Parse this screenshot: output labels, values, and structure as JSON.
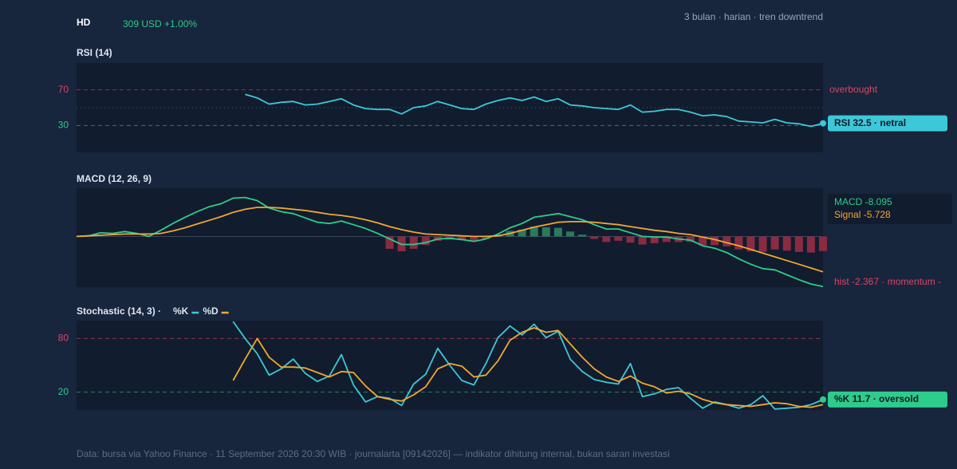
{
  "header": {
    "ticker": "HD",
    "price": "309 USD +1.00%",
    "meta": "3 bulan · harian · tren downtrend"
  },
  "footer": "Data: bursa via Yahoo Finance · 11 September 2026 20:30 WIB · journalarta [09142026] — indikator dihitung internal, bukan saran investasi",
  "chart_data": [
    {
      "type": "line",
      "title": "RSI (14)",
      "ylim": [
        0,
        100
      ],
      "yticks": [
        30,
        70
      ],
      "tick_colors": [
        "#2ecc8a",
        "#e0435f"
      ],
      "midline": 50,
      "annotation": "overbought",
      "badge": "RSI 32.5 · netral",
      "badge_color": "#3cc8d8",
      "series": [
        {
          "name": "RSI",
          "color": "#3cc8d8",
          "values": [
            null,
            null,
            null,
            null,
            null,
            null,
            null,
            null,
            null,
            null,
            null,
            null,
            null,
            null,
            65,
            61,
            54,
            56,
            57,
            53,
            54,
            57,
            60,
            53,
            49,
            48,
            48,
            43,
            50,
            52,
            57,
            53,
            49,
            48,
            54,
            58,
            61,
            58,
            62,
            57,
            60,
            53,
            52,
            50,
            49,
            48,
            53,
            45,
            46,
            48,
            48,
            45,
            41,
            42,
            40,
            35,
            34,
            33,
            37,
            33,
            32,
            29,
            32.5
          ]
        }
      ]
    },
    {
      "type": "macd",
      "title": "MACD (12, 26, 9)",
      "ylim": [
        -8.2,
        7.8
      ],
      "readouts": [
        "MACD -8.095",
        "Signal -5.728"
      ],
      "hist_label": "hist -2.367 · momentum -",
      "series": [
        {
          "name": "MACD",
          "color": "#2ecc8a",
          "values": [
            0,
            0.1,
            0.6,
            0.5,
            0.8,
            0.5,
            0,
            1.0,
            2.1,
            3.1,
            4.0,
            4.8,
            5.3,
            6.2,
            6.3,
            5.8,
            4.6,
            4.0,
            3.7,
            3.0,
            2.3,
            2.1,
            2.5,
            1.9,
            1.3,
            0.5,
            -0.4,
            -1.3,
            -1.3,
            -1.0,
            -0.4,
            -0.3,
            -0.5,
            -0.8,
            -0.4,
            0.4,
            1.4,
            2.1,
            3.1,
            3.4,
            3.7,
            3.2,
            2.7,
            1.9,
            1.2,
            1.2,
            0.6,
            0,
            -0.1,
            -0.1,
            -0.4,
            -0.6,
            -1.5,
            -1.9,
            -2.6,
            -3.6,
            -4.5,
            -5.2,
            -5.4,
            -6.2,
            -7.0,
            -7.7,
            -8.095
          ]
        },
        {
          "name": "Signal",
          "color": "#f0a830",
          "values": [
            0,
            0.1,
            0.2,
            0.3,
            0.4,
            0.4,
            0.4,
            0.5,
            0.9,
            1.4,
            2.0,
            2.6,
            3.2,
            3.9,
            4.4,
            4.7,
            4.7,
            4.6,
            4.4,
            4.2,
            3.9,
            3.6,
            3.4,
            3.1,
            2.7,
            2.2,
            1.6,
            1.1,
            0.7,
            0.4,
            0.3,
            0.2,
            0.1,
            0.0,
            0.0,
            0.1,
            0.5,
            1.0,
            1.5,
            1.9,
            2.3,
            2.4,
            2.4,
            2.3,
            2.1,
            1.9,
            1.6,
            1.3,
            1.0,
            0.8,
            0.5,
            0.3,
            -0.1,
            -0.5,
            -1.0,
            -1.5,
            -2.1,
            -2.7,
            -3.3,
            -3.9,
            -4.5,
            -5.1,
            -5.728
          ]
        },
        {
          "name": "hist",
          "kind": "bar",
          "positive_color": "#2a7a5c",
          "negative_color": "#8a2b42",
          "values": [
            null,
            null,
            null,
            null,
            null,
            null,
            null,
            null,
            null,
            null,
            null,
            null,
            null,
            null,
            null,
            null,
            null,
            null,
            null,
            null,
            null,
            null,
            null,
            null,
            null,
            null,
            -2.0,
            -2.4,
            -2.0,
            -1.4,
            -0.7,
            -0.5,
            -0.6,
            -0.8,
            -0.4,
            0.3,
            0.9,
            1.1,
            1.6,
            1.5,
            1.4,
            0.8,
            0.3,
            -0.4,
            -0.9,
            -0.7,
            -1.0,
            -1.3,
            -1.1,
            -0.9,
            -0.9,
            -0.9,
            -1.4,
            -1.4,
            -1.6,
            -2.1,
            -2.4,
            -2.5,
            -2.1,
            -2.3,
            -2.5,
            -2.6,
            -2.367
          ]
        }
      ]
    },
    {
      "type": "line",
      "title": "Stochastic (14, 3) ·",
      "ylim": [
        0,
        100
      ],
      "yticks": [
        20,
        80
      ],
      "tick_colors": [
        "#2ecc8a",
        "#e0435f"
      ],
      "badge": "%K 11.7 · oversold",
      "badge_color": "#2ecc8a",
      "series": [
        {
          "name": "%K",
          "color": "#3cc8d8",
          "values": [
            null,
            null,
            null,
            null,
            null,
            null,
            null,
            null,
            null,
            null,
            null,
            null,
            null,
            99,
            80,
            63,
            39,
            46,
            57,
            41,
            32,
            38,
            62,
            28,
            9,
            15,
            13,
            5,
            29,
            40,
            69,
            50,
            33,
            28,
            52,
            81,
            94,
            84,
            96,
            81,
            88,
            57,
            43,
            34,
            31,
            29,
            52,
            15,
            18,
            23,
            25,
            13,
            2,
            9,
            6,
            2,
            6,
            16,
            1,
            2,
            3,
            6,
            11.7
          ]
        },
        {
          "name": "%D",
          "color": "#f0a830",
          "values": [
            null,
            null,
            null,
            null,
            null,
            null,
            null,
            null,
            null,
            null,
            null,
            null,
            null,
            33,
            57,
            80,
            59,
            48,
            48,
            47,
            42,
            37,
            43,
            42,
            27,
            15,
            12,
            10,
            17,
            26,
            46,
            52,
            49,
            37,
            39,
            55,
            78,
            87,
            92,
            87,
            89,
            74,
            59,
            46,
            37,
            32,
            38,
            30,
            26,
            19,
            21,
            18,
            12,
            8,
            6,
            5,
            4,
            6,
            8,
            7,
            4,
            3,
            6
          ]
        }
      ]
    }
  ]
}
